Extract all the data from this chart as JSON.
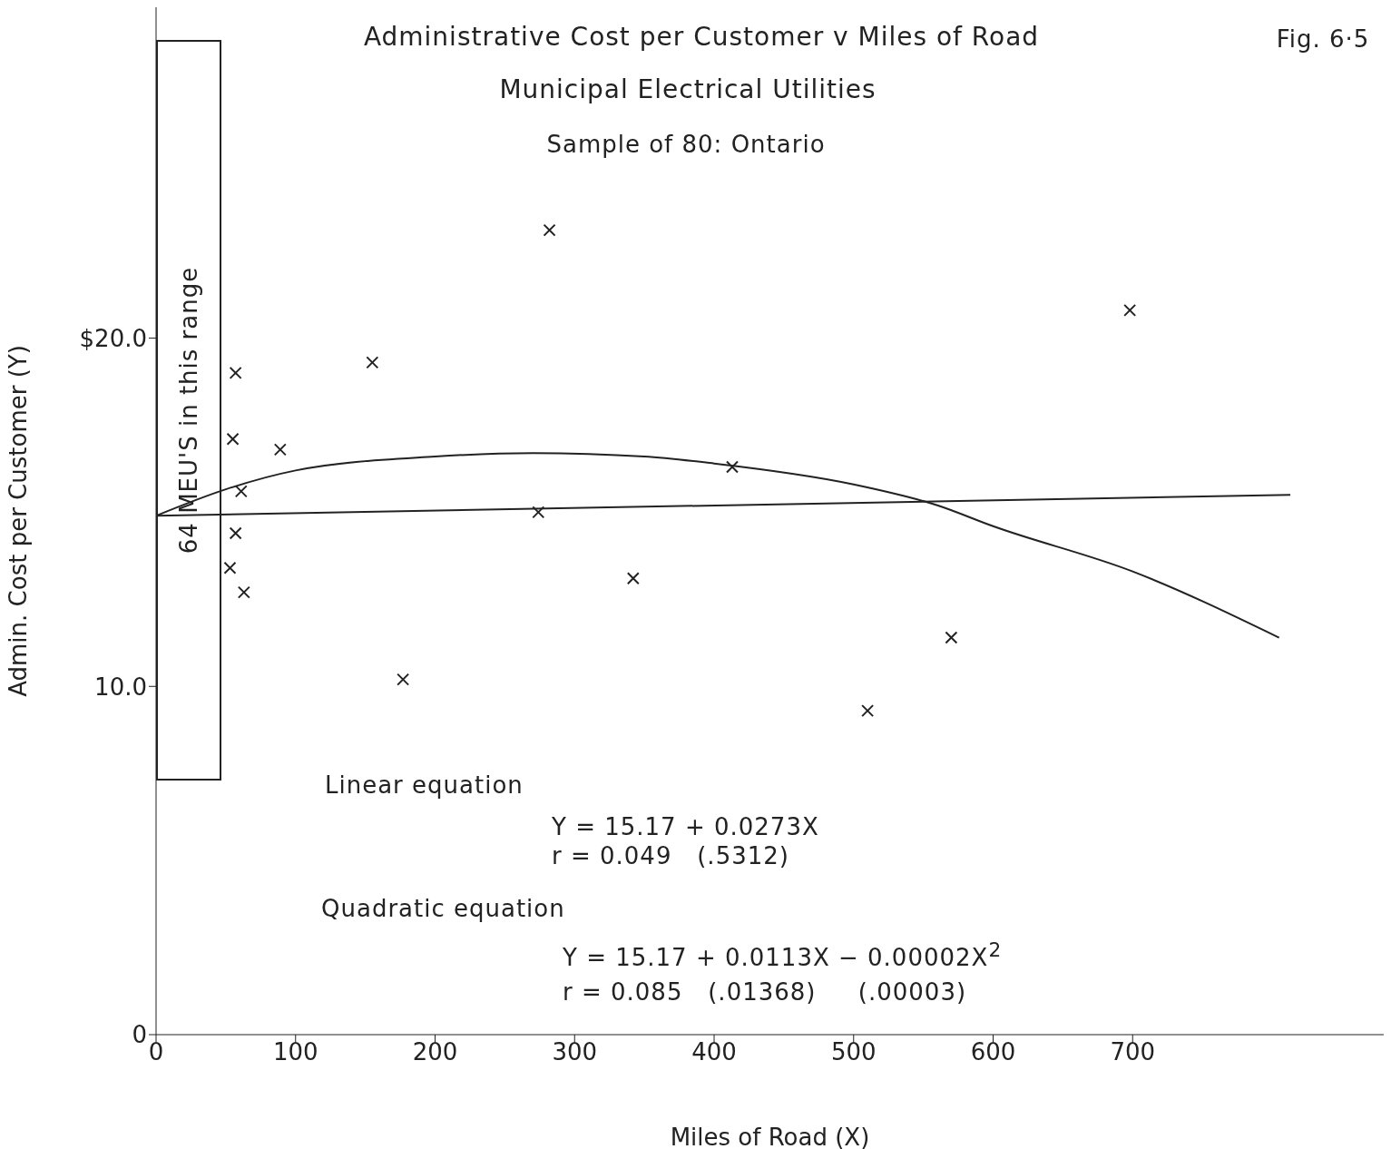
{
  "chart_data": {
    "type": "scatter",
    "title": "Administrative Cost per Customer  v  Miles of Road",
    "subtitle": "Municipal Electrical Utilities",
    "xlabel": "Miles of Road (X)",
    "ylabel": "Admin. Cost per Customer (Y)",
    "xlim": [
      0,
      880
    ],
    "xticks": [
      0,
      100,
      200,
      300,
      400,
      500,
      600,
      700
    ],
    "ylim": [
      0,
      29.5
    ],
    "yticks": [
      0,
      {
        "value": 10,
        "label": "10.0"
      },
      {
        "value": 20,
        "label": "$20.0"
      }
    ],
    "grid": false,
    "legend": false,
    "series": [
      {
        "marker": "cross",
        "color": "#222222",
        "x": [
          282,
          698,
          57,
          155,
          55,
          89,
          413,
          61,
          274,
          57,
          53,
          63,
          342,
          177,
          570,
          510
        ],
        "values": [
          23.1,
          20.8,
          19.0,
          19.3,
          17.1,
          16.8,
          16.3,
          15.6,
          15.0,
          14.4,
          13.4,
          12.7,
          13.1,
          10.2,
          11.4,
          9.3
        ]
      },
      {
        "type": "line",
        "color": "#222222",
        "x": [
          0,
          813
        ],
        "values": [
          14.9,
          15.5
        ]
      },
      {
        "type": "line",
        "color": "#222222",
        "x": [
          0,
          50,
          100,
          200,
          270,
          350,
          400,
          500,
          560,
          600,
          700,
          805
        ],
        "values": [
          14.9,
          15.66,
          16.2,
          16.6,
          16.7,
          16.6,
          16.4,
          15.8,
          15.2,
          14.6,
          13.3,
          11.4
        ]
      }
    ],
    "annotations": [
      "Sample of 80: Ontario",
      "Fig. 6·5",
      "64 MEU'S in this range",
      "Linear equation",
      "Y = 15.17 + 0.0273X",
      "r = 0.049   (.5312)",
      "Quadratic equation",
      "Y = 15.17 + 0.0113X − 0.00002X$^{2}$",
      "r = 0.085   (.01368)     (.00003)"
    ]
  }
}
